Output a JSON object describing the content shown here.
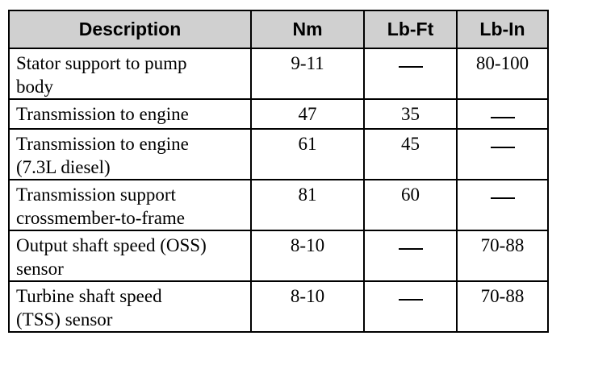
{
  "table": {
    "headers": [
      "Description",
      "Nm",
      "Lb-Ft",
      "Lb-In"
    ],
    "rows": [
      {
        "description": [
          "Stator support to pump",
          "body"
        ],
        "nm": "9-11",
        "lbft": "—",
        "lbin": "80-100"
      },
      {
        "description": [
          "Transmission to engine"
        ],
        "nm": "47",
        "lbft": "35",
        "lbin": "—"
      },
      {
        "description": [
          "Transmission to engine",
          "(7.3L diesel)"
        ],
        "nm": "61",
        "lbft": "45",
        "lbin": "—"
      },
      {
        "description": [
          "Transmission support",
          "crossmember-to-frame"
        ],
        "nm": "81",
        "lbft": "60",
        "lbin": "—"
      },
      {
        "description": [
          "Output shaft speed (OSS)",
          "sensor"
        ],
        "nm": "8-10",
        "lbft": "—",
        "lbin": "70-88"
      },
      {
        "description": [
          "Turbine shaft speed",
          "(TSS) sensor"
        ],
        "nm": "8-10",
        "lbft": "—",
        "lbin": "70-88"
      }
    ]
  }
}
